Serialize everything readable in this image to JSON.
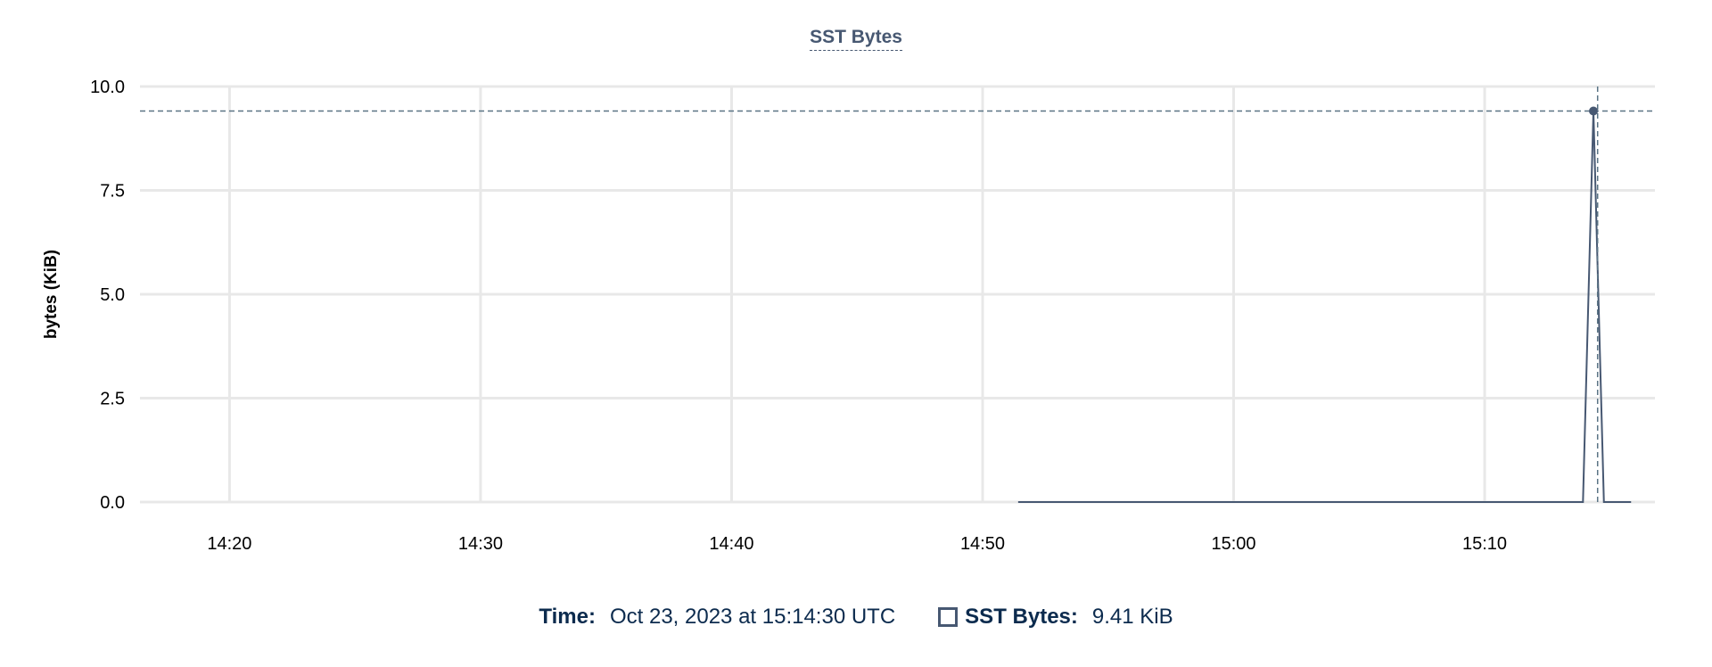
{
  "chart_data": {
    "type": "line",
    "title": "SST Bytes",
    "xlabel": "",
    "ylabel": "bytes (KiB)",
    "xlim": [
      "14:16:26",
      "15:16:47"
    ],
    "ylim": [
      0,
      10
    ],
    "x_ticks": [
      "14:20",
      "14:30",
      "14:40",
      "14:50",
      "15:00",
      "15:10"
    ],
    "y_ticks": [
      "0.0",
      "2.5",
      "5.0",
      "7.5",
      "10.0"
    ],
    "grid": true,
    "series": [
      {
        "name": "SST Bytes",
        "color": "#475872",
        "x": [
          "14:51:25",
          "15:13:55",
          "15:14:20",
          "15:14:45",
          "15:15:50"
        ],
        "values": [
          0,
          0,
          9.41,
          0,
          0
        ]
      }
    ],
    "crosshair": {
      "x": "15:14:30",
      "y": 9.41
    }
  },
  "legend": {
    "time_label": "Time:",
    "time_value": "Oct 23, 2023 at 15:14:30 UTC",
    "series_label": "SST Bytes:",
    "series_value": "9.41 KiB"
  }
}
